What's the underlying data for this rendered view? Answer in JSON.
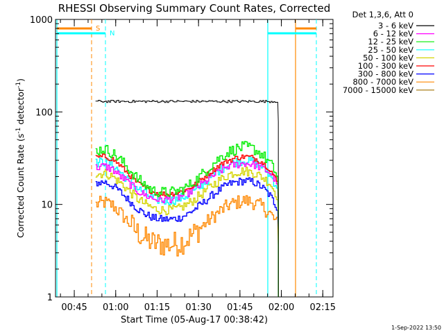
{
  "chart_data": {
    "type": "line",
    "title": "RHESSI Observing Summary Count Rates, Corrected",
    "xlabel": "Start Time (05-Aug-17 00:38:42)",
    "ylabel": "Corrected Count Rate (s",
    "ylabel_sup": "-1",
    "ylabel_mid": " detector",
    "ylabel_sup2": "-1",
    "ylabel_end": ")",
    "yscale": "log",
    "ylim": [
      1,
      1000
    ],
    "xlim_minutes": [
      -0.5,
      100
    ],
    "x_ticks": [
      {
        "label": "00:45",
        "minute": 6.3
      },
      {
        "label": "01:00",
        "minute": 21.3
      },
      {
        "label": "01:15",
        "minute": 36.3
      },
      {
        "label": "01:30",
        "minute": 51.3
      },
      {
        "label": "01:45",
        "minute": 66.3
      },
      {
        "label": "02:00",
        "minute": 81.3
      },
      {
        "label": "02:15",
        "minute": 96.3
      }
    ],
    "y_ticks": [
      {
        "label": "1",
        "value": 1
      },
      {
        "label": "10",
        "value": 10
      },
      {
        "label": "100",
        "value": 100
      },
      {
        "label": "1000",
        "value": 1000
      }
    ],
    "legend_title": "Det 1,3,6, Att 0",
    "legend_position": "right",
    "x_minutes": [
      14,
      17,
      20,
      23,
      26,
      29,
      32,
      35,
      38,
      41,
      44,
      47,
      50,
      53,
      56,
      59,
      62,
      65,
      68,
      71,
      74,
      77,
      79.9
    ],
    "series": [
      {
        "name": "3 - 6 keV",
        "color": "#000000",
        "values": [
          130,
          130,
          130,
          130,
          130,
          130,
          130,
          130,
          130,
          130,
          130,
          130,
          130,
          130,
          130,
          130,
          130,
          130,
          130,
          130,
          130,
          130,
          130
        ]
      },
      {
        "name": "6 - 12 keV",
        "color": "#ff00ff",
        "values": [
          25,
          26,
          24,
          20,
          17,
          14,
          12.5,
          11.5,
          11.2,
          11.5,
          12,
          13,
          15,
          17,
          20,
          23,
          26,
          27,
          28,
          27,
          25,
          22,
          17
        ]
      },
      {
        "name": "12 - 25 keV",
        "color": "#00ee00",
        "values": [
          38,
          40,
          36,
          30,
          24,
          19,
          16,
          14,
          13.5,
          13.5,
          14,
          15.5,
          18,
          22,
          27,
          32,
          37,
          40,
          42,
          40,
          35,
          28,
          20
        ]
      },
      {
        "name": "25 - 50 keV",
        "color": "#00ffff",
        "values": [
          28,
          29,
          27,
          22,
          18,
          15,
          13,
          11.5,
          11,
          11,
          11.5,
          12.5,
          14,
          17,
          20,
          24,
          27,
          29,
          30,
          29,
          26,
          21,
          15
        ]
      },
      {
        "name": "50 - 100 keV",
        "color": "#d4d400",
        "values": [
          21,
          22,
          20,
          17,
          14,
          11.5,
          10,
          9,
          8.7,
          8.7,
          9,
          10,
          11.5,
          13.5,
          16,
          18.5,
          21,
          22.5,
          23,
          22,
          20,
          17,
          12
        ]
      },
      {
        "name": "100 - 300 keV",
        "color": "#ff0000",
        "values": [
          32,
          33,
          31,
          26,
          21,
          17,
          15,
          13.5,
          13,
          13,
          13.5,
          14.5,
          16.5,
          19.5,
          23,
          27,
          30,
          32,
          33,
          32,
          29,
          24,
          17
        ]
      },
      {
        "name": "300 - 800 keV",
        "color": "#0000ff",
        "values": [
          17,
          17.5,
          16,
          13.5,
          11,
          9,
          7.8,
          7.1,
          6.9,
          6.9,
          7.1,
          7.8,
          9,
          10.5,
          12.5,
          14.5,
          16.5,
          17.5,
          18,
          17.5,
          15.5,
          12.5,
          9
        ]
      },
      {
        "name": "800 - 7000 keV",
        "color": "#ff8800",
        "values": [
          10,
          10.5,
          9.8,
          8,
          6.3,
          5,
          4.2,
          3.8,
          3.7,
          3.7,
          3.8,
          4.2,
          5,
          6,
          7.2,
          8.5,
          9.8,
          10.5,
          11,
          10.5,
          9.5,
          8,
          6
        ]
      },
      {
        "name": "7000 - 15000 keV",
        "color": "#a07000",
        "values": []
      }
    ],
    "annotations": [
      {
        "text": "S",
        "color": "#ff8800"
      },
      {
        "text": "N",
        "color": "#00ffff"
      }
    ]
  },
  "timestamp": "1-Sep-2022 13:50"
}
